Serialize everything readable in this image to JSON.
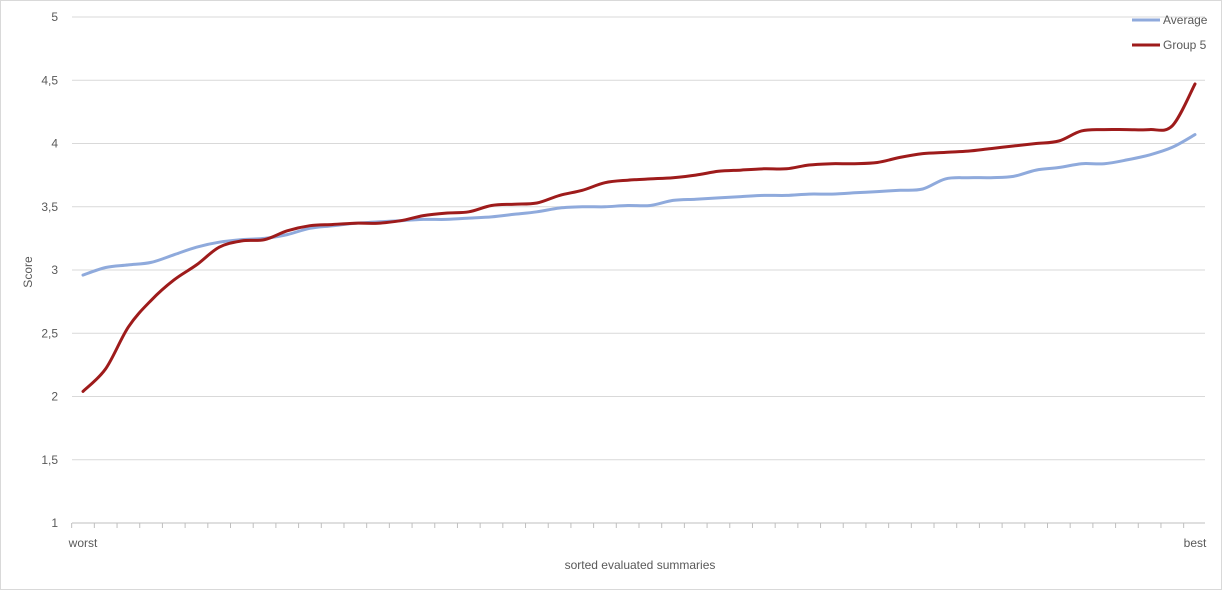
{
  "chart_data": {
    "type": "line",
    "title": "",
    "xlabel": "sorted evaluated summaries",
    "ylabel": "Score",
    "ylim": [
      1,
      5
    ],
    "yticks": [
      "1",
      "1,5",
      "2",
      "2,5",
      "3",
      "3,5",
      "4",
      "4,5",
      "5"
    ],
    "ytick_values": [
      1,
      1.5,
      2,
      2.5,
      3,
      3.5,
      4,
      4.5,
      5
    ],
    "x_tick_labels": [
      "worst",
      "best"
    ],
    "grid": true,
    "legend_position": "top-right",
    "n_points": 50,
    "series": [
      {
        "name": "Average",
        "color": "#8faadc",
        "values": [
          2.96,
          3.02,
          3.04,
          3.06,
          3.12,
          3.18,
          3.22,
          3.24,
          3.25,
          3.28,
          3.33,
          3.35,
          3.37,
          3.38,
          3.39,
          3.4,
          3.4,
          3.41,
          3.42,
          3.44,
          3.46,
          3.49,
          3.5,
          3.5,
          3.51,
          3.51,
          3.55,
          3.56,
          3.57,
          3.58,
          3.59,
          3.59,
          3.6,
          3.6,
          3.61,
          3.62,
          3.63,
          3.64,
          3.72,
          3.73,
          3.73,
          3.74,
          3.79,
          3.81,
          3.84,
          3.84,
          3.87,
          3.91,
          3.97,
          4.07
        ]
      },
      {
        "name": "Group 5",
        "color": "#9e1b1b",
        "values": [
          2.04,
          2.22,
          2.55,
          2.76,
          2.92,
          3.04,
          3.18,
          3.23,
          3.24,
          3.31,
          3.35,
          3.36,
          3.37,
          3.37,
          3.39,
          3.43,
          3.45,
          3.46,
          3.51,
          3.52,
          3.53,
          3.59,
          3.63,
          3.69,
          3.71,
          3.72,
          3.73,
          3.75,
          3.78,
          3.79,
          3.8,
          3.8,
          3.83,
          3.84,
          3.84,
          3.85,
          3.89,
          3.92,
          3.93,
          3.94,
          3.96,
          3.98,
          4.0,
          4.02,
          4.1,
          4.11,
          4.11,
          4.11,
          4.14,
          4.47
        ]
      }
    ]
  }
}
